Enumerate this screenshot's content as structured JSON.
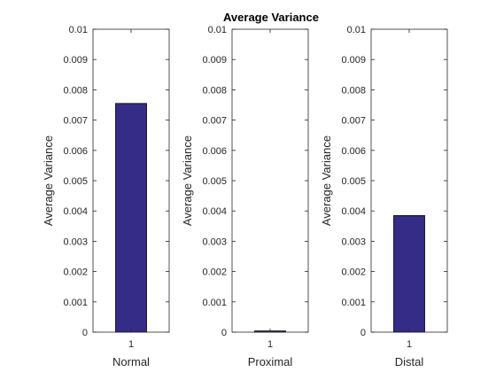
{
  "chart_data": [
    {
      "type": "bar",
      "title": "Average Variance",
      "categories": [
        "1"
      ],
      "values": [
        0.00755
      ],
      "xlabel": "Normal",
      "ylabel": "Average Variance",
      "ylim": [
        0,
        0.01
      ],
      "yticks": [
        "0",
        "0.001",
        "0.002",
        "0.003",
        "0.004",
        "0.005",
        "0.006",
        "0.007",
        "0.008",
        "0.009",
        "0.01"
      ],
      "bar_color": "#342c86",
      "grid": false
    },
    {
      "type": "bar",
      "title": "",
      "categories": [
        "1"
      ],
      "values": [
        4e-05
      ],
      "xlabel": "Proximal",
      "ylabel": "Average Variance",
      "ylim": [
        0,
        0.01
      ],
      "yticks": [
        "0",
        "0.001",
        "0.002",
        "0.003",
        "0.004",
        "0.005",
        "0.006",
        "0.007",
        "0.008",
        "0.009",
        "0.01"
      ],
      "bar_color": "#342c86",
      "grid": false
    },
    {
      "type": "bar",
      "title": "",
      "categories": [
        "1"
      ],
      "values": [
        0.00385
      ],
      "xlabel": "Distal",
      "ylabel": "Average Variance",
      "ylim": [
        0,
        0.01
      ],
      "yticks": [
        "0",
        "0.001",
        "0.002",
        "0.003",
        "0.004",
        "0.005",
        "0.006",
        "0.007",
        "0.008",
        "0.009",
        "0.01"
      ],
      "bar_color": "#342c86",
      "grid": false
    }
  ]
}
